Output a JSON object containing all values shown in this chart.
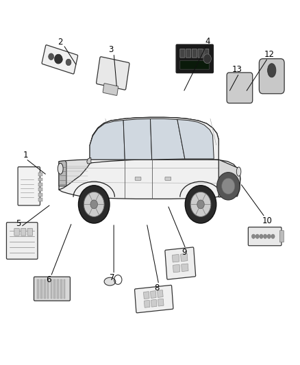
{
  "bg_color": "#ffffff",
  "fig_width": 4.39,
  "fig_height": 5.33,
  "dpi": 100,
  "label_color": "#000000",
  "label_fontsize": 8.5,
  "line_color": "#000000",
  "car": {
    "body_color": "#f0f0f0",
    "body_edge": "#222222",
    "roof_color": "#e8e8e8",
    "window_color": "#d0d8e0",
    "wheel_outer": "#333333",
    "wheel_inner": "#888888",
    "stripe_color": "#cccccc"
  },
  "numbers": [
    {
      "n": "1",
      "nx": 0.085,
      "ny": 0.575
    },
    {
      "n": "2",
      "nx": 0.2,
      "ny": 0.885
    },
    {
      "n": "3",
      "nx": 0.368,
      "ny": 0.865
    },
    {
      "n": "4",
      "nx": 0.692,
      "ny": 0.888
    },
    {
      "n": "5",
      "nx": 0.06,
      "ny": 0.388
    },
    {
      "n": "6",
      "nx": 0.16,
      "ny": 0.232
    },
    {
      "n": "7",
      "nx": 0.372,
      "ny": 0.238
    },
    {
      "n": "8",
      "nx": 0.522,
      "ny": 0.21
    },
    {
      "n": "9",
      "nx": 0.612,
      "ny": 0.308
    },
    {
      "n": "10",
      "nx": 0.89,
      "ny": 0.395
    },
    {
      "n": "12",
      "nx": 0.898,
      "ny": 0.852
    },
    {
      "n": "13",
      "nx": 0.79,
      "ny": 0.81
    }
  ],
  "leader_lines": [
    {
      "n": "1",
      "from": [
        0.085,
        0.565
      ],
      "to": [
        0.155,
        0.52
      ]
    },
    {
      "n": "2",
      "from": [
        0.21,
        0.878
      ],
      "to": [
        0.255,
        0.82
      ]
    },
    {
      "n": "3",
      "from": [
        0.378,
        0.855
      ],
      "to": [
        0.388,
        0.76
      ]
    },
    {
      "n": "4",
      "from": [
        0.688,
        0.878
      ],
      "to": [
        0.61,
        0.748
      ]
    },
    {
      "n": "5",
      "from": [
        0.068,
        0.378
      ],
      "to": [
        0.168,
        0.44
      ]
    },
    {
      "n": "6",
      "from": [
        0.168,
        0.242
      ],
      "to": [
        0.238,
        0.39
      ]
    },
    {
      "n": "7",
      "from": [
        0.378,
        0.248
      ],
      "to": [
        0.378,
        0.388
      ]
    },
    {
      "n": "8",
      "from": [
        0.528,
        0.22
      ],
      "to": [
        0.488,
        0.388
      ]
    },
    {
      "n": "9",
      "from": [
        0.618,
        0.318
      ],
      "to": [
        0.558,
        0.438
      ]
    },
    {
      "n": "10",
      "from": [
        0.882,
        0.405
      ],
      "to": [
        0.8,
        0.498
      ]
    },
    {
      "n": "12",
      "from": [
        0.892,
        0.842
      ],
      "to": [
        0.818,
        0.748
      ]
    },
    {
      "n": "13",
      "from": [
        0.796,
        0.8
      ],
      "to": [
        0.762,
        0.748
      ]
    }
  ]
}
